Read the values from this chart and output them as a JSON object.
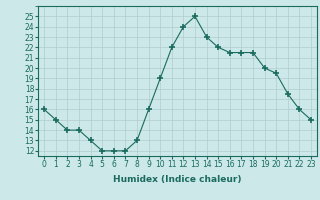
{
  "x": [
    0,
    1,
    2,
    3,
    4,
    5,
    6,
    7,
    8,
    9,
    10,
    11,
    12,
    13,
    14,
    15,
    16,
    17,
    18,
    19,
    20,
    21,
    22,
    23
  ],
  "y": [
    16,
    15,
    14,
    14,
    13,
    12,
    12,
    12,
    13,
    16,
    19,
    22,
    24,
    25,
    23,
    22,
    21.5,
    21.5,
    21.5,
    20,
    19.5,
    17.5,
    16,
    15
  ],
  "line_color": "#1a6b5e",
  "marker_color": "#1a6b5e",
  "bg_color": "#cce8e8",
  "grid_color": "#b0cccc",
  "xlabel": "Humidex (Indice chaleur)",
  "xlim": [
    -0.5,
    23.5
  ],
  "ylim": [
    11.5,
    26
  ],
  "yticks": [
    12,
    13,
    14,
    15,
    16,
    17,
    18,
    19,
    20,
    21,
    22,
    23,
    24,
    25
  ],
  "xtick_labels": [
    "0",
    "1",
    "2",
    "3",
    "4",
    "5",
    "6",
    "7",
    "8",
    "9",
    "10",
    "11",
    "12",
    "13",
    "14",
    "15",
    "16",
    "17",
    "18",
    "19",
    "20",
    "21",
    "22",
    "23"
  ],
  "tick_fontsize": 5.5,
  "label_fontsize": 6.5
}
